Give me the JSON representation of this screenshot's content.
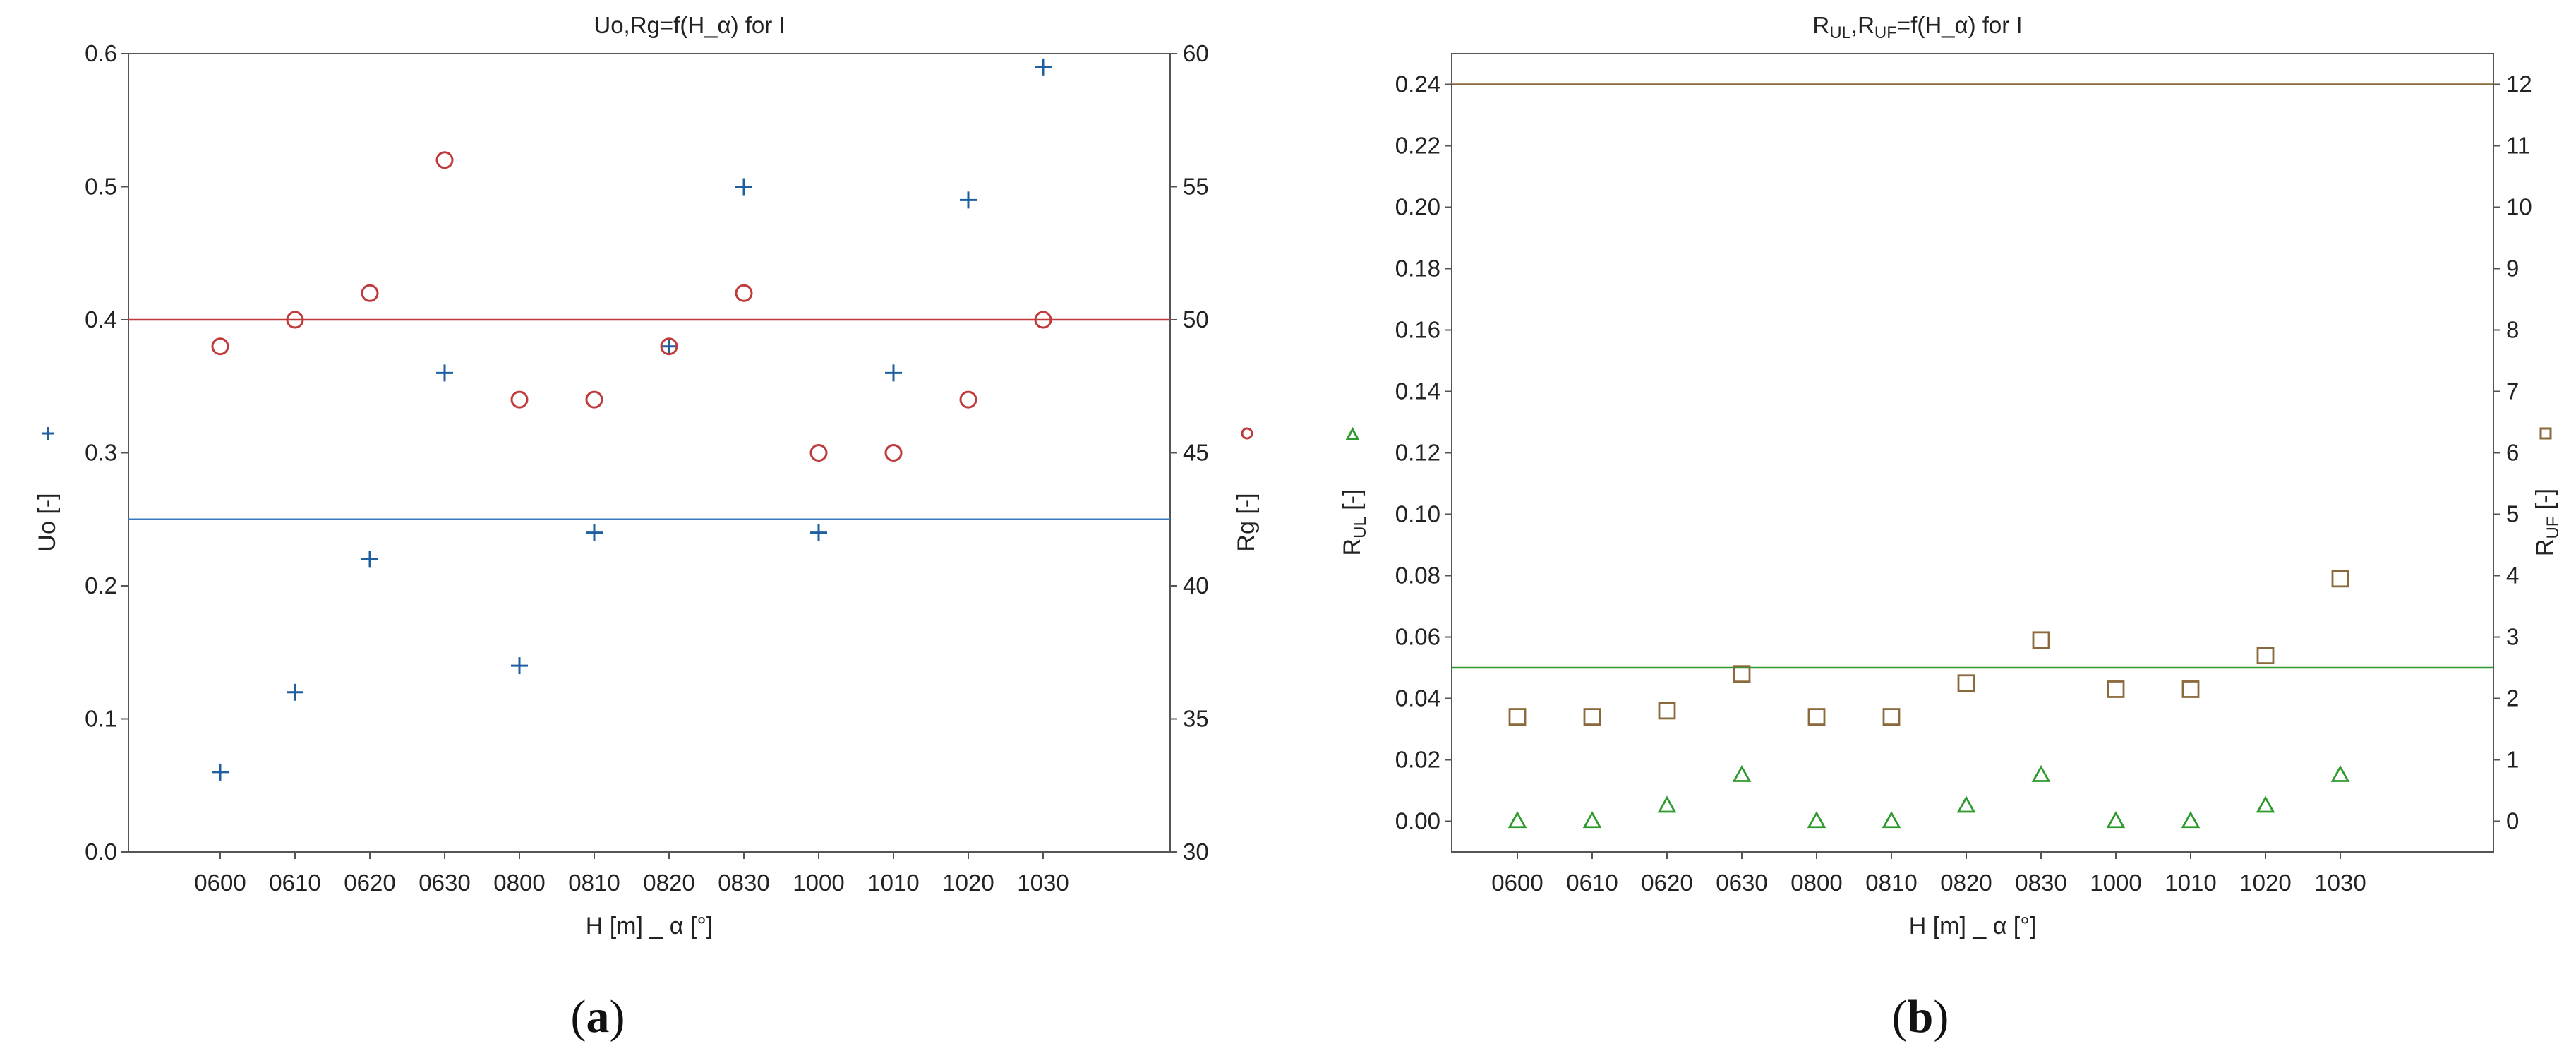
{
  "chart_data": [
    {
      "type": "scatter",
      "title": "Uo,Rg=f(H_α) for I",
      "panel_label": {
        "open": "(",
        "letter": "a",
        "close": ")"
      },
      "xlabel": "H [m] _ α [°]",
      "ylabel_left": "Uo [-]",
      "ylabel_right": "Rg [-]",
      "categories": [
        "0600",
        "0610",
        "0620",
        "0630",
        "0800",
        "0810",
        "0820",
        "0830",
        "1000",
        "1010",
        "1020",
        "1030"
      ],
      "ylim_left": [
        0,
        0.6
      ],
      "yticks_left": [
        "0.0",
        "0.1",
        "0.2",
        "0.3",
        "0.4",
        "0.5",
        "0.6"
      ],
      "ylim_right": [
        30,
        60
      ],
      "yticks_right": [
        "30",
        "35",
        "40",
        "45",
        "50",
        "55",
        "60"
      ],
      "grid": false,
      "series": [
        {
          "axis": "left",
          "marker": "plus",
          "color": "#1f5fa0",
          "values": [
            0.06,
            0.12,
            0.22,
            0.36,
            0.14,
            0.24,
            0.38,
            0.5,
            0.24,
            0.36,
            0.49,
            0.59
          ]
        },
        {
          "axis": "right",
          "marker": "circle",
          "color": "#c0393b",
          "values": [
            49,
            50,
            51,
            56,
            47,
            47,
            49,
            51,
            45,
            45,
            47,
            50
          ]
        }
      ],
      "reference_lines": [
        {
          "axis": "left",
          "value": 0.25,
          "color": "#3a7bbf"
        },
        {
          "axis": "left",
          "value": 0.4,
          "color": "#c0393b"
        }
      ]
    },
    {
      "type": "scatter",
      "title_parts": [
        "R",
        "UL",
        ",R",
        "UF",
        "=f(H_α) for I"
      ],
      "panel_label": {
        "open": "(",
        "letter": "b",
        "close": ")"
      },
      "xlabel": "H [m] _ α [°]",
      "ylabel_left_parts": [
        "R",
        "UL",
        " [-]"
      ],
      "ylabel_right_parts": [
        "R",
        "UF",
        " [-]"
      ],
      "categories": [
        "0600",
        "0610",
        "0620",
        "0630",
        "0800",
        "0810",
        "0820",
        "0830",
        "1000",
        "1010",
        "1020",
        "1030"
      ],
      "ylim_left": [
        -0.01,
        0.25
      ],
      "yticks_left": [
        "0.00",
        "0.02",
        "0.04",
        "0.06",
        "0.08",
        "0.10",
        "0.12",
        "0.14",
        "0.16",
        "0.18",
        "0.20",
        "0.22",
        "0.24"
      ],
      "ylim_right": [
        -0.5,
        12.5
      ],
      "yticks_right": [
        "0",
        "1",
        "2",
        "3",
        "4",
        "5",
        "6",
        "7",
        "8",
        "9",
        "10",
        "11",
        "12"
      ],
      "grid": false,
      "series": [
        {
          "axis": "left",
          "marker": "triangle",
          "color": "#2e9a2e",
          "values": [
            0.0,
            0.0,
            0.005,
            0.015,
            0.0,
            0.0,
            0.005,
            0.015,
            0.0,
            0.0,
            0.005,
            0.015
          ]
        },
        {
          "axis": "right",
          "marker": "square",
          "color": "#8a6a3c",
          "values": [
            1.7,
            1.7,
            1.8,
            2.4,
            1.7,
            1.7,
            2.25,
            2.95,
            2.15,
            2.15,
            2.7,
            3.95
          ]
        }
      ],
      "reference_lines": [
        {
          "axis": "left",
          "value": 0.05,
          "color": "#2e9a2e"
        },
        {
          "axis": "left",
          "value": 0.24,
          "color": "#8a6a3c"
        }
      ]
    }
  ]
}
